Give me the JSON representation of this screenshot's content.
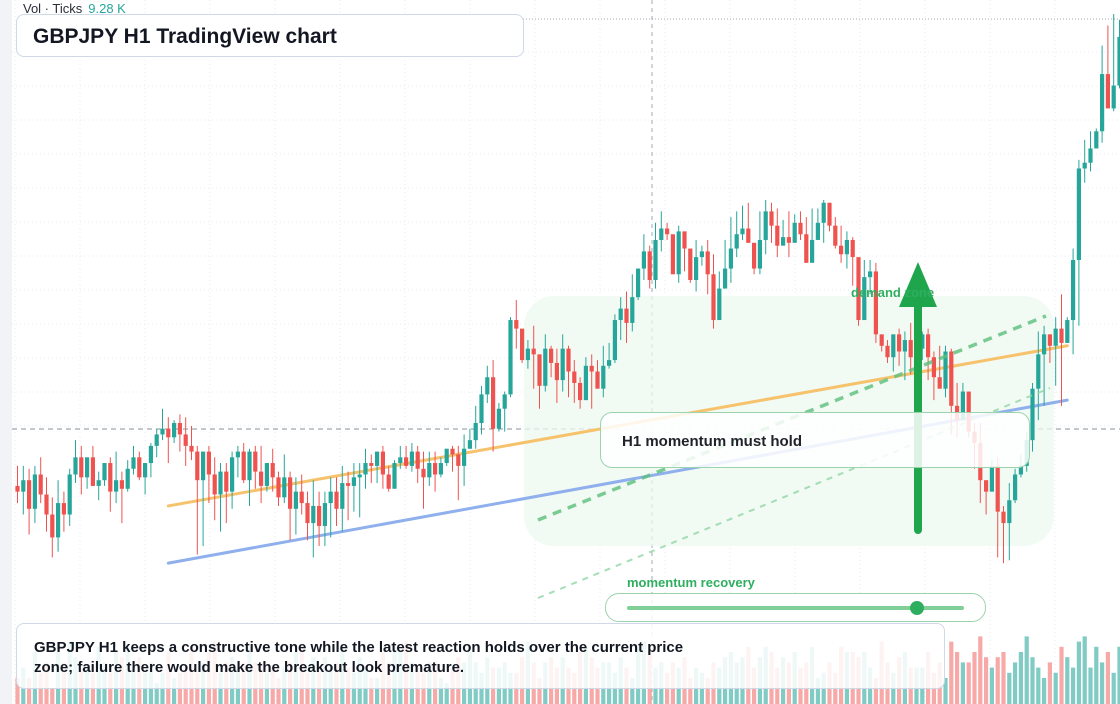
{
  "vol": {
    "label": "Vol · Ticks",
    "value": "9.28 K"
  },
  "title": "GBPJPY H1 TradingView chart",
  "annotations": {
    "momentum_box": "H1 momentum must hold",
    "zone_label": "demand zone",
    "recovery_label": "momentum recovery",
    "recovery_level": 0.86
  },
  "caption": "GBPJPY H1 keeps a constructive tone while the latest reaction holds over the current price zone; failure there would make the breakout look premature.",
  "colors": {
    "up": "#26a69a",
    "down": "#ef5350",
    "vol_up": "#80cbc4",
    "vol_down": "#f7a9a8",
    "orange_line": "#f6c26b",
    "blue_line": "#8fb0ec",
    "accent_green": "#2fae5f"
  },
  "chart_data": {
    "type": "candlestick",
    "title": "GBPJPY H1 TradingView chart",
    "price_range": [
      0,
      100
    ],
    "crosshair_price": 47.9,
    "reference_price": 100,
    "candles": [
      [
        28,
        26,
        35,
        22
      ],
      [
        26,
        30,
        35,
        18
      ],
      [
        30,
        20,
        34,
        11
      ],
      [
        20,
        32,
        35,
        15
      ],
      [
        32,
        25,
        38,
        22
      ],
      [
        25,
        18,
        31,
        12
      ],
      [
        18,
        10,
        24,
        3
      ],
      [
        10,
        22,
        30,
        5
      ],
      [
        22,
        18,
        26,
        12
      ],
      [
        18,
        32,
        34,
        14
      ],
      [
        32,
        38,
        44,
        29
      ],
      [
        38,
        31,
        42,
        25
      ],
      [
        31,
        38,
        38,
        27
      ],
      [
        38,
        28,
        42,
        28
      ],
      [
        28,
        30,
        33,
        23
      ],
      [
        30,
        36,
        36,
        28
      ],
      [
        36,
        26,
        38,
        19
      ],
      [
        26,
        30,
        40,
        22
      ],
      [
        30,
        27,
        33,
        15
      ],
      [
        27,
        34,
        37,
        26
      ],
      [
        34,
        38,
        42,
        32
      ],
      [
        38,
        31,
        40,
        30
      ],
      [
        31,
        36,
        36,
        25
      ],
      [
        36,
        42,
        43,
        31
      ],
      [
        42,
        46,
        48,
        38
      ],
      [
        46,
        48,
        55,
        44
      ],
      [
        48,
        45,
        52,
        36
      ],
      [
        45,
        50,
        51,
        43
      ],
      [
        50,
        46,
        53,
        40
      ],
      [
        46,
        42,
        52,
        35
      ],
      [
        42,
        40,
        49,
        37
      ],
      [
        40,
        30,
        42,
        4
      ],
      [
        30,
        40,
        40,
        7
      ],
      [
        40,
        32,
        42,
        22
      ],
      [
        32,
        25,
        38,
        16
      ],
      [
        25,
        33,
        36,
        12
      ],
      [
        33,
        26,
        36,
        15
      ],
      [
        26,
        38,
        40,
        20
      ],
      [
        38,
        40,
        42,
        31
      ],
      [
        40,
        30,
        43,
        29
      ],
      [
        30,
        40,
        41,
        21
      ],
      [
        40,
        33,
        42,
        27
      ],
      [
        33,
        28,
        42,
        22
      ],
      [
        28,
        36,
        36,
        26
      ],
      [
        36,
        31,
        41,
        26
      ],
      [
        31,
        24,
        33,
        21
      ],
      [
        24,
        31,
        39,
        22
      ],
      [
        31,
        20,
        33,
        9
      ],
      [
        20,
        26,
        31,
        11
      ],
      [
        26,
        22,
        32,
        18
      ],
      [
        22,
        15,
        26,
        9
      ],
      [
        15,
        21,
        30,
        3
      ],
      [
        21,
        14,
        26,
        7
      ],
      [
        14,
        22,
        26,
        7
      ],
      [
        22,
        26,
        31,
        10
      ],
      [
        26,
        20,
        31,
        14
      ],
      [
        20,
        29,
        35,
        12
      ],
      [
        29,
        28,
        33,
        16
      ],
      [
        28,
        31,
        36,
        19
      ],
      [
        31,
        32,
        36,
        17
      ],
      [
        32,
        36,
        41,
        27
      ],
      [
        36,
        35,
        39,
        29
      ],
      [
        35,
        40,
        40,
        29
      ],
      [
        40,
        32,
        42,
        27
      ],
      [
        32,
        27,
        35,
        26
      ],
      [
        27,
        36,
        37,
        28
      ],
      [
        36,
        38,
        42,
        34
      ],
      [
        38,
        35,
        42,
        34
      ],
      [
        35,
        40,
        43,
        33
      ],
      [
        40,
        34,
        42,
        29
      ],
      [
        34,
        31,
        40,
        20
      ],
      [
        31,
        36,
        40,
        28
      ],
      [
        36,
        32,
        40,
        26
      ],
      [
        32,
        36,
        38,
        31
      ],
      [
        36,
        41,
        41,
        35
      ],
      [
        41,
        39,
        42,
        33
      ],
      [
        39,
        35,
        42,
        23
      ],
      [
        35,
        41,
        46,
        28
      ],
      [
        41,
        44,
        48,
        41
      ],
      [
        44,
        50,
        56,
        41
      ],
      [
        50,
        60,
        63,
        46
      ],
      [
        60,
        66,
        70,
        57
      ],
      [
        66,
        48,
        72,
        40
      ],
      [
        48,
        55,
        57,
        47
      ],
      [
        55,
        60,
        61,
        47
      ],
      [
        60,
        86,
        87,
        59
      ],
      [
        86,
        83,
        93,
        76
      ],
      [
        83,
        72,
        80,
        71
      ],
      [
        72,
        76,
        79,
        69
      ],
      [
        76,
        74,
        84,
        62
      ],
      [
        74,
        63,
        70,
        55
      ],
      [
        63,
        76,
        81,
        61
      ],
      [
        76,
        71,
        77,
        66
      ],
      [
        71,
        65,
        76,
        57
      ],
      [
        65,
        76,
        81,
        61
      ],
      [
        76,
        68,
        77,
        59
      ],
      [
        68,
        64,
        72,
        57
      ],
      [
        64,
        58,
        66,
        55
      ],
      [
        58,
        70,
        73,
        58
      ],
      [
        70,
        68,
        74,
        55
      ],
      [
        68,
        62,
        72,
        62
      ],
      [
        62,
        70,
        77,
        59
      ],
      [
        70,
        72,
        78,
        69
      ],
      [
        72,
        86,
        88,
        71
      ],
      [
        86,
        90,
        94,
        79
      ],
      [
        90,
        85,
        96,
        78
      ],
      [
        85,
        94,
        102,
        82
      ],
      [
        94,
        104,
        104,
        93
      ],
      [
        104,
        110,
        116,
        100
      ],
      [
        110,
        100,
        112,
        97
      ],
      [
        100,
        114,
        120,
        97
      ],
      [
        114,
        118,
        124,
        110
      ],
      [
        118,
        116,
        120,
        114
      ],
      [
        116,
        102,
        115,
        105
      ],
      [
        102,
        117,
        119,
        99
      ],
      [
        117,
        111,
        116,
        103
      ],
      [
        111,
        100,
        110,
        99
      ],
      [
        100,
        108,
        114,
        96
      ],
      [
        108,
        110,
        112,
        105
      ],
      [
        110,
        102,
        114,
        95
      ],
      [
        102,
        86,
        109,
        83
      ],
      [
        86,
        97,
        103,
        87
      ],
      [
        97,
        104,
        114,
        99
      ],
      [
        104,
        111,
        122,
        99
      ],
      [
        111,
        116,
        124,
        108
      ],
      [
        116,
        118,
        126,
        114
      ],
      [
        118,
        113,
        127,
        113
      ],
      [
        113,
        104,
        113,
        102
      ],
      [
        104,
        114,
        124,
        102
      ],
      [
        114,
        124,
        128,
        109
      ],
      [
        124,
        119,
        127,
        113
      ],
      [
        119,
        112,
        125,
        108
      ],
      [
        112,
        115,
        121,
        113
      ],
      [
        115,
        113,
        124,
        108
      ],
      [
        113,
        120,
        123,
        114
      ],
      [
        120,
        116,
        124,
        114
      ],
      [
        116,
        106,
        122,
        106
      ],
      [
        106,
        114,
        125,
        108
      ],
      [
        114,
        120,
        125,
        115
      ],
      [
        120,
        127,
        128,
        113
      ],
      [
        127,
        119,
        127,
        117
      ],
      [
        119,
        112,
        122,
        111
      ],
      [
        112,
        109,
        119,
        106
      ],
      [
        109,
        114,
        117,
        104
      ],
      [
        114,
        108,
        115,
        98
      ],
      [
        108,
        86,
        106,
        84
      ],
      [
        86,
        101,
        107,
        95
      ],
      [
        101,
        103,
        107,
        95
      ],
      [
        103,
        81,
        106,
        78
      ],
      [
        81,
        77,
        79,
        75
      ],
      [
        77,
        73,
        79,
        71
      ],
      [
        73,
        81,
        81,
        68
      ],
      [
        81,
        75,
        83,
        70
      ],
      [
        75,
        79,
        82,
        65
      ],
      [
        79,
        73,
        85,
        67
      ],
      [
        73,
        76,
        81,
        66
      ],
      [
        76,
        81,
        82,
        72
      ],
      [
        81,
        73,
        83,
        65
      ],
      [
        73,
        66,
        75,
        58
      ],
      [
        66,
        62,
        77,
        62
      ],
      [
        62,
        75,
        77,
        59
      ],
      [
        75,
        56,
        76,
        46
      ],
      [
        56,
        51,
        64,
        45
      ],
      [
        51,
        61,
        64,
        51
      ],
      [
        61,
        47,
        54,
        45
      ],
      [
        47,
        43,
        50,
        34
      ],
      [
        43,
        30,
        50,
        22
      ],
      [
        30,
        26,
        30,
        18
      ],
      [
        26,
        35,
        37,
        26
      ],
      [
        35,
        19,
        38,
        3
      ],
      [
        19,
        15,
        21,
        1
      ],
      [
        15,
        23,
        29,
        2
      ],
      [
        23,
        32,
        34,
        22
      ],
      [
        32,
        35,
        39,
        31
      ],
      [
        35,
        44,
        47,
        33
      ],
      [
        44,
        62,
        64,
        40
      ],
      [
        62,
        74,
        82,
        51
      ],
      [
        74,
        81,
        84,
        56
      ],
      [
        81,
        77,
        81,
        71
      ],
      [
        77,
        83,
        87,
        63
      ],
      [
        83,
        78,
        95,
        56
      ],
      [
        78,
        86,
        87,
        78
      ],
      [
        86,
        107,
        111,
        74
      ],
      [
        107,
        139,
        142,
        84
      ],
      [
        139,
        141,
        149,
        134
      ],
      [
        141,
        146,
        152,
        138
      ],
      [
        146,
        152,
        153,
        148
      ],
      [
        152,
        172,
        182,
        148
      ],
      [
        172,
        160,
        189,
        162
      ],
      [
        160,
        168,
        193,
        159
      ],
      [
        168,
        185,
        191,
        167
      ],
      [
        185,
        188,
        195,
        175
      ]
    ],
    "volume": [
      5,
      7,
      5,
      10,
      6,
      8,
      3,
      10,
      8,
      12,
      9,
      7,
      7,
      6,
      11,
      8,
      6,
      10,
      9,
      11,
      7,
      9,
      6,
      8,
      4,
      6,
      10,
      5,
      6,
      7,
      11,
      6,
      8,
      10,
      12,
      6,
      8,
      9,
      7,
      8,
      11,
      8,
      8,
      6,
      7,
      5,
      7,
      8,
      10,
      11,
      6,
      9,
      7,
      9,
      7,
      8,
      11,
      7,
      6,
      9,
      7,
      5,
      5,
      10,
      8,
      11,
      10,
      12,
      8,
      7,
      6,
      8,
      8,
      5,
      4,
      7,
      9,
      8,
      10,
      8,
      6,
      9,
      7,
      7,
      8,
      6,
      6,
      9,
      12,
      8,
      5,
      8,
      9,
      7,
      9,
      7,
      6,
      10,
      11,
      9,
      7,
      8,
      8,
      6,
      9,
      7,
      5,
      11,
      12,
      10,
      7,
      8,
      6,
      8,
      7,
      9,
      5,
      7,
      6,
      5,
      8,
      7,
      9,
      10,
      8,
      9,
      11,
      7,
      9,
      11,
      10,
      7,
      9,
      8,
      10,
      7,
      8,
      11,
      5,
      6,
      8,
      6,
      11,
      10,
      10,
      9,
      10,
      7,
      5,
      12,
      8,
      6,
      9,
      10,
      7,
      7,
      7,
      10,
      6,
      8,
      5,
      12,
      10,
      8,
      8,
      10,
      13,
      9,
      7,
      9,
      10,
      6,
      8,
      10,
      13,
      9,
      7,
      5,
      8,
      6,
      11,
      9,
      7,
      12,
      13,
      7,
      11,
      8,
      10,
      6,
      11,
      12
    ],
    "lines": [
      {
        "name": "",
        "color": "orange",
        "from": [
          26,
          21
        ],
        "to": [
          181,
          77
        ]
      },
      {
        "name": "",
        "color": "blue",
        "from": [
          26,
          1
        ],
        "to": [
          181,
          58
        ]
      }
    ]
  }
}
